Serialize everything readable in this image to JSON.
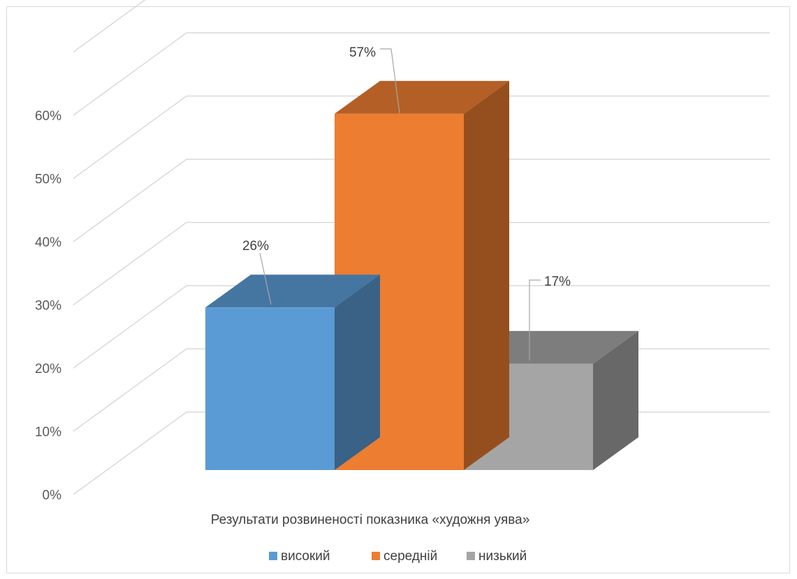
{
  "chart_data": {
    "type": "bar",
    "categories": [
      "Результати розвиненості показника «художня уява»"
    ],
    "series": [
      {
        "name": "високий",
        "values": [
          26
        ],
        "label": "26%",
        "color": "#5b9bd5"
      },
      {
        "name": "середній",
        "values": [
          57
        ],
        "label": "57%",
        "color": "#ed7d31"
      },
      {
        "name": "низький",
        "values": [
          17
        ],
        "label": "17%",
        "color": "#a5a5a5"
      }
    ],
    "y_ticks": [
      "0%",
      "10%",
      "20%",
      "30%",
      "40%",
      "50%",
      "60%"
    ],
    "ylim": [
      0,
      70
    ],
    "grid": true,
    "legend_position": "bottom",
    "three_d": true
  }
}
